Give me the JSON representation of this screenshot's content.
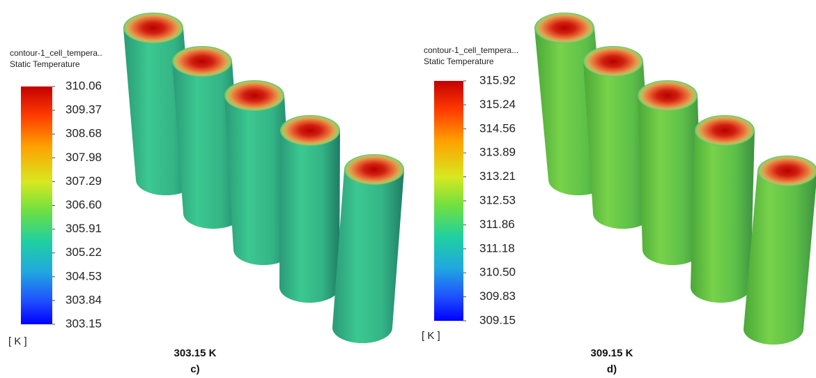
{
  "panels": [
    {
      "legend_title": "contour-1_cell_tempera..",
      "legend_subtitle": "Static Temperature",
      "ticks": [
        "310.06",
        "309.37",
        "308.68",
        "307.98",
        "307.29",
        "306.60",
        "305.91",
        "305.22",
        "304.53",
        "303.84",
        "303.15"
      ],
      "unit": "[ K ]",
      "caption": "303.15 K",
      "label": "c)"
    },
    {
      "legend_title": "contour-1_cell_tempera...",
      "legend_subtitle": "Static Temperature",
      "ticks": [
        "315.92",
        "315.24",
        "314.56",
        "313.89",
        "313.21",
        "312.53",
        "311.86",
        "311.18",
        "310.50",
        "309.83",
        "309.15"
      ],
      "unit": "[ K ]",
      "caption": "309.15 K",
      "label": "d)"
    }
  ]
}
